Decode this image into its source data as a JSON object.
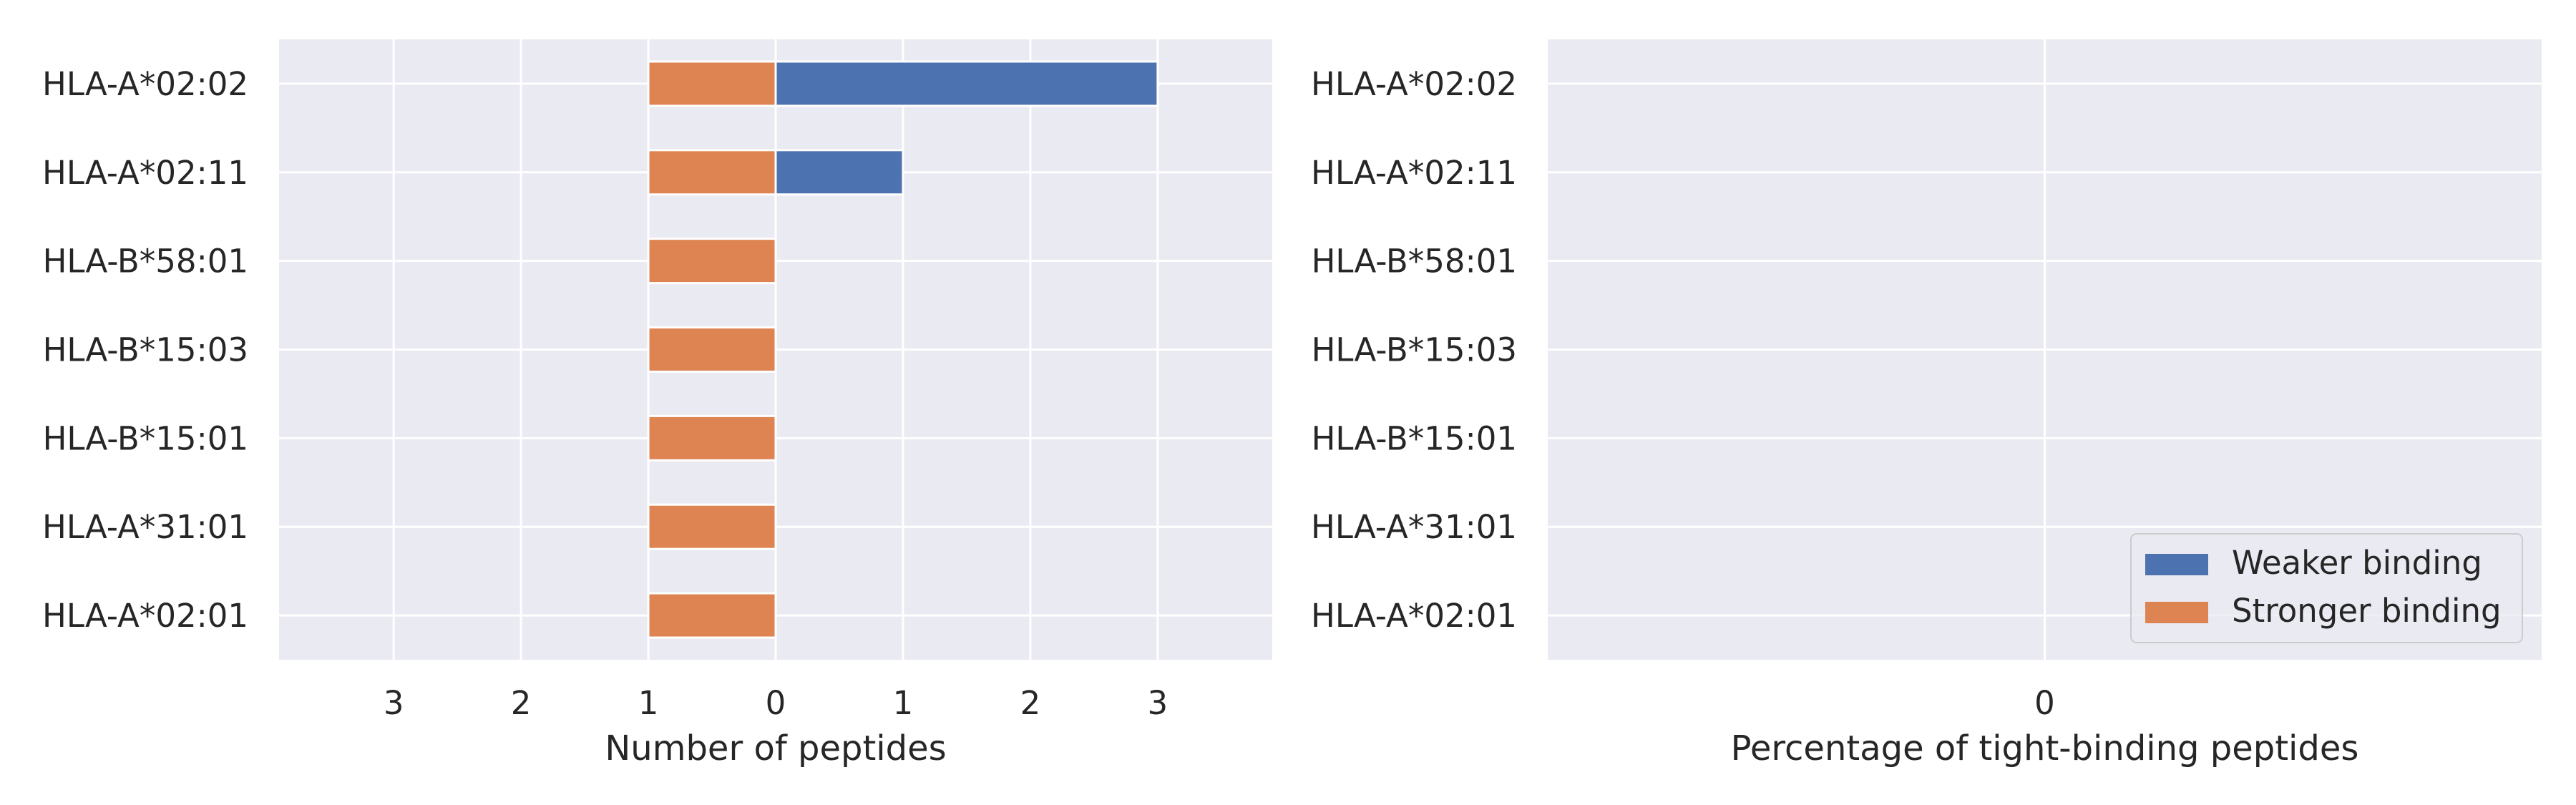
{
  "chart_data": [
    {
      "type": "bar",
      "orientation": "horizontal",
      "stacking": "diverging",
      "categories": [
        "HLA-A*02:02",
        "HLA-A*02:11",
        "HLA-B*58:01",
        "HLA-B*15:03",
        "HLA-B*15:01",
        "HLA-A*31:01",
        "HLA-A*02:01"
      ],
      "series": [
        {
          "name": "Weaker binding",
          "color": "#4c72b0",
          "direction": "right",
          "values": [
            3,
            1,
            0,
            0,
            0,
            0,
            0
          ]
        },
        {
          "name": "Stronger binding",
          "color": "#dd8452",
          "direction": "left",
          "values": [
            1,
            1,
            1,
            1,
            1,
            1,
            1
          ]
        }
      ],
      "xlabel": "Number of peptides",
      "xlim": [
        -3.9,
        3.9
      ],
      "xticks": [
        -3,
        -2,
        -1,
        0,
        1,
        2,
        3
      ],
      "xtick_labels": [
        "3",
        "2",
        "1",
        "0",
        "1",
        "2",
        "3"
      ],
      "grid": true,
      "style": "seaborn-darkgrid"
    },
    {
      "type": "bar",
      "orientation": "horizontal",
      "categories": [
        "HLA-A*02:02",
        "HLA-A*02:11",
        "HLA-B*58:01",
        "HLA-B*15:03",
        "HLA-B*15:01",
        "HLA-A*31:01",
        "HLA-A*02:01"
      ],
      "series": [
        {
          "name": "Weaker binding",
          "color": "#4c72b0",
          "values": [
            0,
            0,
            0,
            0,
            0,
            0,
            0
          ]
        },
        {
          "name": "Stronger binding",
          "color": "#dd8452",
          "values": [
            0,
            0,
            0,
            0,
            0,
            0,
            0
          ]
        }
      ],
      "xlabel": "Percentage of tight-binding peptides",
      "xlim": [
        -1,
        1
      ],
      "xticks": [
        0
      ],
      "xtick_labels": [
        "0"
      ],
      "grid": true,
      "legend": {
        "placement": "bottom-right",
        "entries": [
          "Weaker binding",
          "Stronger binding"
        ]
      },
      "style": "seaborn-darkgrid"
    }
  ]
}
